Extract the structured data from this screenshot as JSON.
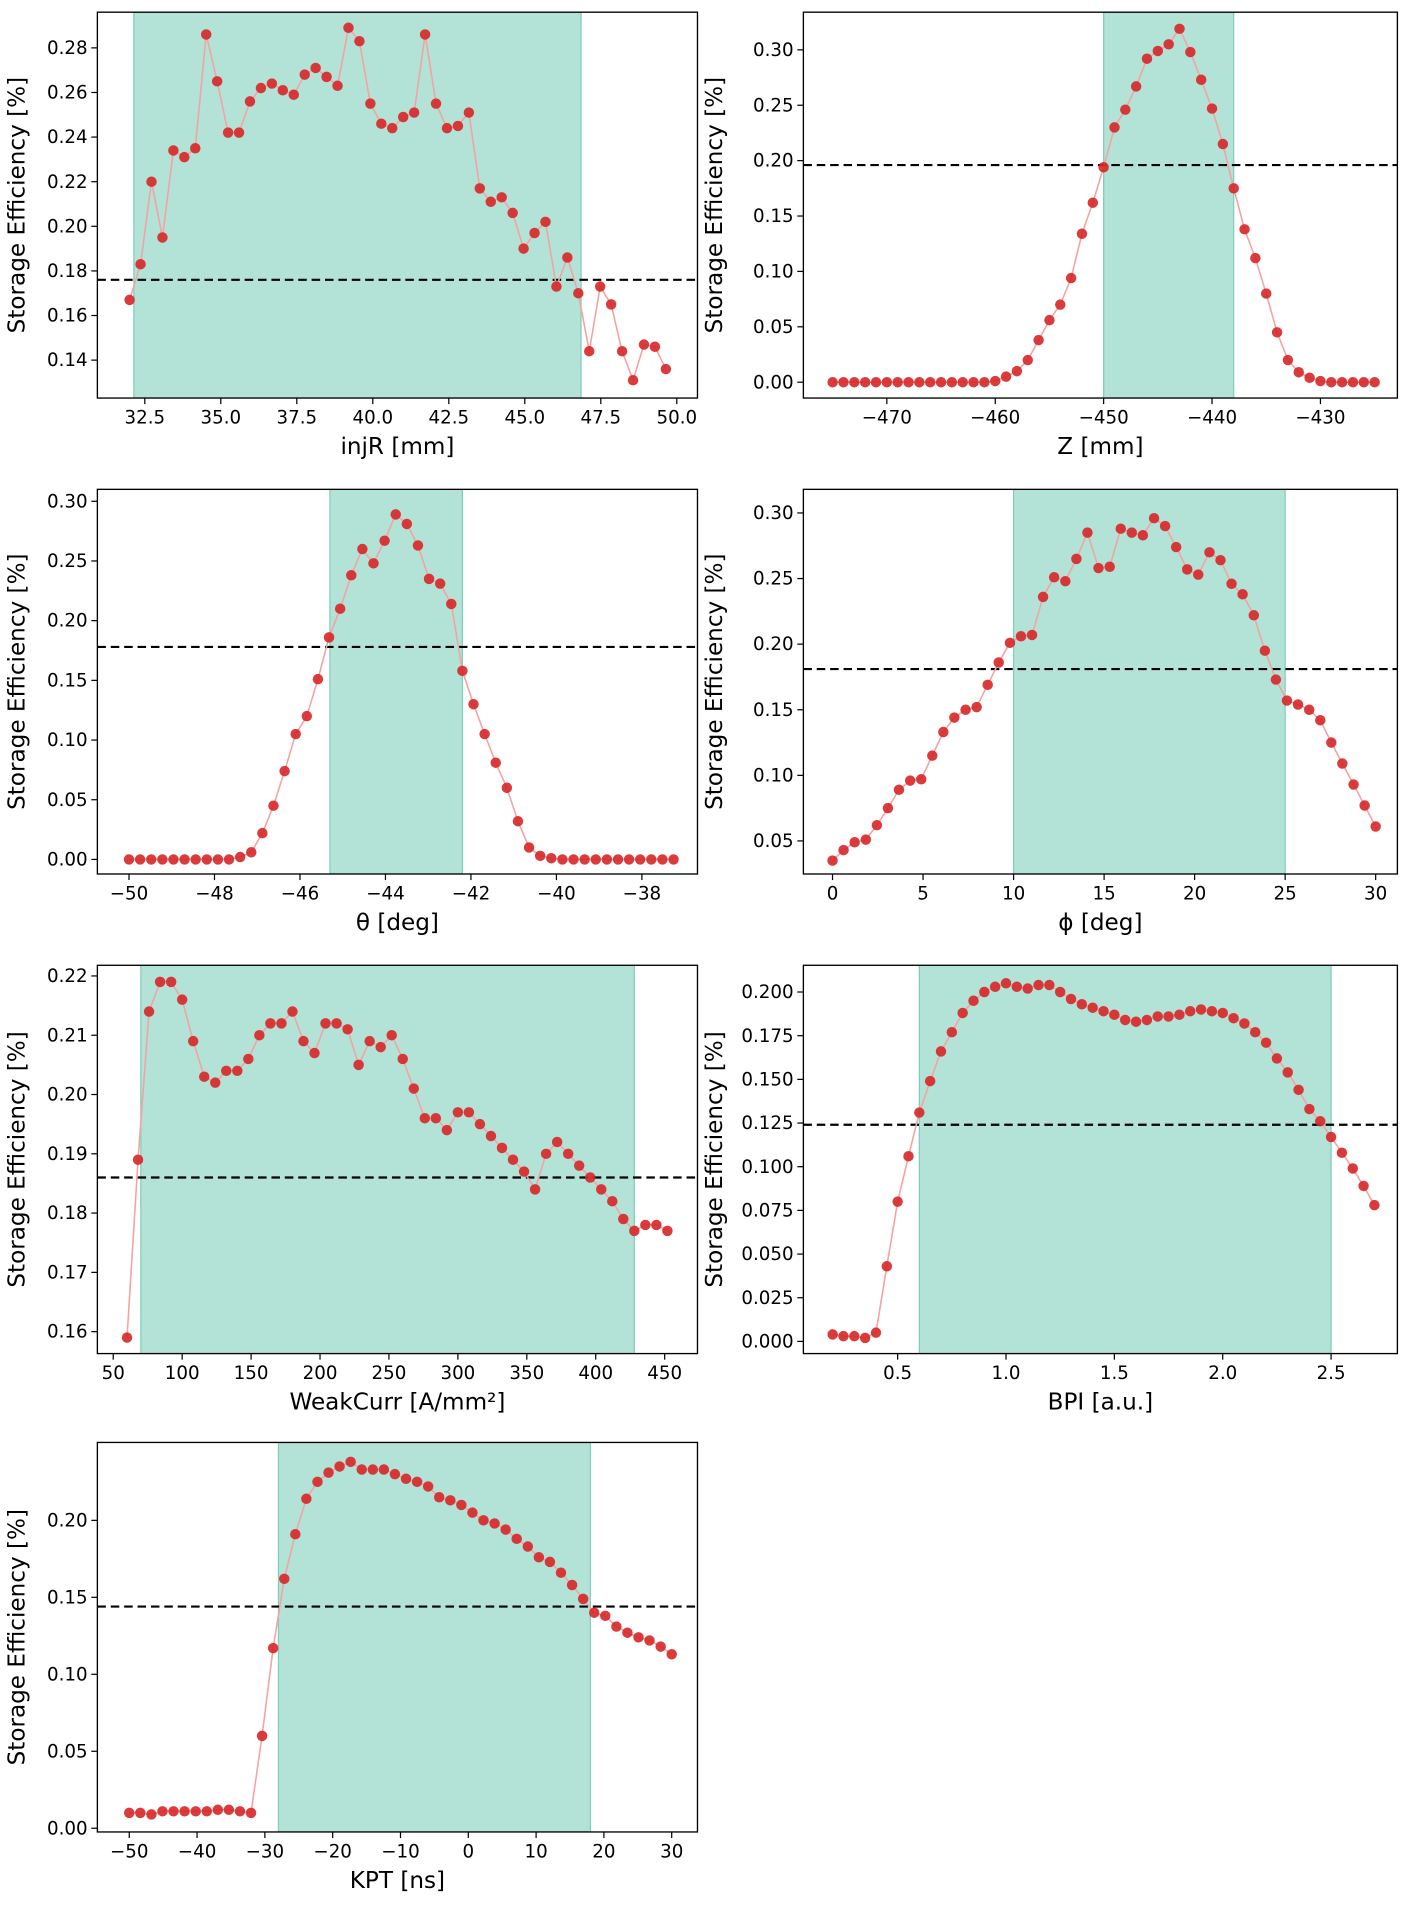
{
  "chart_data": [
    {
      "type": "line",
      "xlabel": "injR [mm]",
      "ylabel": "Storage Efficiency [%]",
      "color": "#d62728",
      "line_color": "#f4a3a3",
      "span_color": "#b3e2d7",
      "hline": 0.176,
      "span": [
        32.14,
        46.85
      ],
      "x": [
        32,
        32.36,
        32.72,
        33.08,
        33.44,
        33.8,
        34.16,
        34.52,
        34.88,
        35.24,
        35.6,
        35.96,
        36.32,
        36.68,
        37.04,
        37.4,
        37.76,
        38.12,
        38.48,
        38.84,
        39.2,
        39.56,
        39.92,
        40.28,
        40.64,
        41,
        41.36,
        41.72,
        42.08,
        42.44,
        42.8,
        43.16,
        43.52,
        43.88,
        44.24,
        44.6,
        44.96,
        45.32,
        45.68,
        46.04,
        46.4,
        46.76,
        47.12,
        47.48,
        47.84,
        48.2,
        48.56,
        48.92,
        49.28,
        49.64
      ],
      "values": [
        0.167,
        0.183,
        0.22,
        0.195,
        0.234,
        0.231,
        0.235,
        0.286,
        0.265,
        0.242,
        0.242,
        0.256,
        0.262,
        0.264,
        0.261,
        0.259,
        0.268,
        0.271,
        0.267,
        0.263,
        0.289,
        0.283,
        0.255,
        0.246,
        0.244,
        0.249,
        0.251,
        0.286,
        0.255,
        0.244,
        0.245,
        0.251,
        0.217,
        0.211,
        0.213,
        0.206,
        0.19,
        0.197,
        0.202,
        0.173,
        0.186,
        0.17,
        0.144,
        0.173,
        0.165,
        0.144,
        0.131,
        0.147,
        0.146,
        0.136
      ],
      "xlim": [
        30.94,
        50.68
      ],
      "ylim": [
        0.123,
        0.296
      ],
      "xticks": [
        32.5,
        {
          "value": 35,
          "label": "35.0"
        },
        37.5,
        {
          "value": 40,
          "label": "40.0"
        },
        42.5,
        {
          "value": 45,
          "label": "45.0"
        },
        47.5,
        {
          "value": 50,
          "label": "50.0"
        }
      ],
      "yticks": [
        0.14,
        0.16,
        0.18,
        {
          "value": 0.2,
          "label": "0.20"
        },
        0.22,
        0.24,
        0.26,
        0.28
      ]
    },
    {
      "type": "line",
      "xlabel": "Z [mm]",
      "ylabel": "Storage Efficiency [%]",
      "color": "#d62728",
      "line_color": "#f4a3a3",
      "span_color": "#b3e2d7",
      "hline": 0.196,
      "span": [
        -450,
        -438
      ],
      "x": [
        -475,
        -474,
        -473,
        -472,
        -471,
        -470,
        -469,
        -468,
        -467,
        -466,
        -465,
        -464,
        -463,
        -462,
        -461,
        -460,
        -459,
        -458,
        -457,
        -456,
        -455,
        -454,
        -453,
        -452,
        -451,
        -450,
        -449,
        -448,
        -447,
        -446,
        -445,
        -444,
        -443,
        -442,
        -441,
        -440,
        -439,
        -438,
        -437,
        -436,
        -435,
        -434,
        -433,
        -432,
        -431,
        -430,
        -429,
        -428,
        -427,
        -426,
        -425
      ],
      "values": [
        0,
        0,
        0,
        0,
        0,
        0,
        0,
        0,
        0,
        0,
        0,
        0,
        0,
        0,
        0,
        0.001,
        0.005,
        0.01,
        0.02,
        0.038,
        0.056,
        0.07,
        0.094,
        0.134,
        0.162,
        0.194,
        0.23,
        0.246,
        0.267,
        0.292,
        0.299,
        0.305,
        0.319,
        0.298,
        0.273,
        0.247,
        0.215,
        0.175,
        0.138,
        0.112,
        0.08,
        0.045,
        0.02,
        0.009,
        0.004,
        0.001,
        0,
        0,
        0,
        0,
        0
      ],
      "xlim": [
        -477.7,
        -422.9
      ],
      "ylim": [
        -0.0143,
        0.334
      ],
      "xticks": [
        {
          "value": -470,
          "label": "−470"
        },
        {
          "value": -460,
          "label": "−460"
        },
        {
          "value": -450,
          "label": "−450"
        },
        {
          "value": -440,
          "label": "−440"
        },
        {
          "value": -430,
          "label": "−430"
        }
      ],
      "yticks": [
        {
          "value": 0,
          "label": "0.00"
        },
        0.05,
        {
          "value": 0.1,
          "label": "0.10"
        },
        0.15,
        {
          "value": 0.2,
          "label": "0.20"
        },
        0.25,
        {
          "value": 0.3,
          "label": "0.30"
        }
      ]
    },
    {
      "type": "line",
      "xlabel": "θ [deg]",
      "ylabel": "Storage Efficiency [%]",
      "color": "#d62728",
      "line_color": "#f4a3a3",
      "span_color": "#b3e2d7",
      "hline": 0.178,
      "span": [
        -45.3,
        -42.2
      ],
      "x": [
        -50,
        -49.74,
        -49.48,
        -49.22,
        -48.96,
        -48.7,
        -48.44,
        -48.18,
        -47.92,
        -47.66,
        -47.4,
        -47.14,
        -46.88,
        -46.62,
        -46.36,
        -46.1,
        -45.84,
        -45.58,
        -45.32,
        -45.06,
        -44.8,
        -44.54,
        -44.28,
        -44.02,
        -43.76,
        -43.5,
        -43.24,
        -42.98,
        -42.72,
        -42.46,
        -42.2,
        -41.94,
        -41.68,
        -41.42,
        -41.16,
        -40.9,
        -40.64,
        -40.38,
        -40.12,
        -39.86,
        -39.6,
        -39.34,
        -39.08,
        -38.82,
        -38.56,
        -38.3,
        -38.04,
        -37.78,
        -37.52,
        -37.26
      ],
      "values": [
        0,
        0,
        0,
        0,
        0,
        0,
        0,
        0,
        0,
        0,
        0.002,
        0.006,
        0.022,
        0.045,
        0.074,
        0.105,
        0.12,
        0.151,
        0.186,
        0.21,
        0.238,
        0.26,
        0.248,
        0.267,
        0.289,
        0.281,
        0.263,
        0.235,
        0.231,
        0.214,
        0.158,
        0.13,
        0.105,
        0.081,
        0.06,
        0.032,
        0.01,
        0.003,
        0.001,
        0,
        0,
        0,
        0,
        0,
        0,
        0,
        0,
        0,
        0,
        0
      ],
      "xlim": [
        -50.74,
        -36.7
      ],
      "ylim": [
        -0.0122,
        0.31
      ],
      "xticks": [
        {
          "value": -50,
          "label": "−50"
        },
        {
          "value": -48,
          "label": "−48"
        },
        {
          "value": -46,
          "label": "−46"
        },
        {
          "value": -44,
          "label": "−44"
        },
        {
          "value": -42,
          "label": "−42"
        },
        {
          "value": -40,
          "label": "−40"
        },
        {
          "value": -38,
          "label": "−38"
        }
      ],
      "yticks": [
        {
          "value": 0,
          "label": "0.00"
        },
        0.05,
        {
          "value": 0.1,
          "label": "0.10"
        },
        0.15,
        {
          "value": 0.2,
          "label": "0.20"
        },
        0.25,
        {
          "value": 0.3,
          "label": "0.30"
        }
      ]
    },
    {
      "type": "line",
      "xlabel": "ϕ [deg]",
      "ylabel": "Storage Efficiency [%]",
      "color": "#d62728",
      "line_color": "#f4a3a3",
      "span_color": "#b3e2d7",
      "hline": 0.181,
      "span": [
        10,
        25
      ],
      "x": [
        0,
        0.61,
        1.22,
        1.84,
        2.45,
        3.06,
        3.67,
        4.29,
        4.9,
        5.51,
        6.12,
        6.73,
        7.35,
        7.96,
        8.57,
        9.18,
        9.8,
        10.41,
        11.02,
        11.63,
        12.24,
        12.86,
        13.47,
        14.08,
        14.69,
        15.31,
        15.92,
        16.53,
        17.14,
        17.76,
        18.37,
        18.98,
        19.59,
        20.2,
        20.82,
        21.43,
        22.04,
        22.65,
        23.27,
        23.88,
        24.49,
        25.1,
        25.71,
        26.33,
        26.94,
        27.55,
        28.16,
        28.78,
        29.39,
        30
      ],
      "values": [
        0.035,
        0.043,
        0.049,
        0.051,
        0.062,
        0.075,
        0.089,
        0.096,
        0.097,
        0.115,
        0.133,
        0.144,
        0.15,
        0.152,
        0.169,
        0.186,
        0.201,
        0.206,
        0.207,
        0.236,
        0.251,
        0.248,
        0.265,
        0.285,
        0.258,
        0.259,
        0.288,
        0.285,
        0.283,
        0.296,
        0.29,
        0.274,
        0.257,
        0.253,
        0.27,
        0.264,
        0.246,
        0.238,
        0.222,
        0.195,
        0.173,
        0.157,
        0.154,
        0.15,
        0.142,
        0.125,
        0.109,
        0.093,
        0.077,
        0.061
      ],
      "xlim": [
        -1.61,
        31.2
      ],
      "ylim": [
        0.0248,
        0.318
      ],
      "xticks": [
        0,
        5,
        10,
        15,
        20,
        25,
        30
      ],
      "yticks": [
        0.05,
        {
          "value": 0.1,
          "label": "0.10"
        },
        0.15,
        {
          "value": 0.2,
          "label": "0.20"
        },
        0.25,
        {
          "value": 0.3,
          "label": "0.30"
        }
      ]
    },
    {
      "type": "line",
      "xlabel": "WeakCurr [A/mm²]",
      "ylabel": "Storage Efficiency [%]",
      "color": "#d62728",
      "line_color": "#f4a3a3",
      "span_color": "#b3e2d7",
      "hline": 0.186,
      "span": [
        70,
        428
      ],
      "x": [
        60,
        68,
        76,
        84,
        92,
        100,
        108,
        116,
        124,
        132,
        140,
        148,
        156,
        164,
        172,
        180,
        188,
        196,
        204,
        212,
        220,
        228,
        236,
        244,
        252,
        260,
        268,
        276,
        284,
        292,
        300,
        308,
        316,
        324,
        332,
        340,
        348,
        356,
        364,
        372,
        380,
        388,
        396,
        404,
        412,
        420,
        428,
        436,
        444,
        452
      ],
      "values": [
        0.159,
        0.189,
        0.214,
        0.219,
        0.219,
        0.216,
        0.209,
        0.203,
        0.202,
        0.204,
        0.204,
        0.206,
        0.21,
        0.212,
        0.212,
        0.214,
        0.209,
        0.207,
        0.212,
        0.212,
        0.211,
        0.205,
        0.209,
        0.208,
        0.21,
        0.206,
        0.201,
        0.196,
        0.196,
        0.194,
        0.197,
        0.197,
        0.195,
        0.193,
        0.191,
        0.189,
        0.187,
        0.184,
        0.19,
        0.192,
        0.19,
        0.188,
        0.186,
        0.184,
        0.182,
        0.179,
        0.177,
        0.178,
        0.178,
        0.177
      ],
      "xlim": [
        38.5,
        473.8
      ],
      "ylim": [
        0.1563,
        0.2218
      ],
      "xticks": [
        50,
        100,
        150,
        200,
        250,
        300,
        350,
        400,
        450
      ],
      "yticks": [
        0.16,
        0.17,
        0.18,
        0.19,
        {
          "value": 0.2,
          "label": "0.20"
        },
        0.21,
        0.22
      ]
    },
    {
      "type": "line",
      "xlabel": "BPI [a.u.]",
      "ylabel": "Storage Efficiency [%]",
      "color": "#d62728",
      "line_color": "#f4a3a3",
      "span_color": "#b3e2d7",
      "hline": 0.124,
      "span": [
        0.6,
        2.5
      ],
      "x": [
        0.2,
        0.25,
        0.3,
        0.35,
        0.4,
        0.45,
        0.5,
        0.55,
        0.6,
        0.65,
        0.7,
        0.75,
        0.8,
        0.85,
        0.9,
        0.95,
        1.0,
        1.05,
        1.1,
        1.15,
        1.2,
        1.25,
        1.3,
        1.35,
        1.4,
        1.45,
        1.5,
        1.55,
        1.6,
        1.65,
        1.7,
        1.75,
        1.8,
        1.85,
        1.9,
        1.95,
        2.0,
        2.05,
        2.1,
        2.15,
        2.2,
        2.25,
        2.3,
        2.35,
        2.4,
        2.45,
        2.5,
        2.55,
        2.6,
        2.65,
        2.7
      ],
      "values": [
        0.004,
        0.003,
        0.003,
        0.002,
        0.005,
        0.043,
        0.08,
        0.106,
        0.131,
        0.149,
        0.166,
        0.177,
        0.188,
        0.195,
        0.2,
        0.203,
        0.205,
        0.203,
        0.202,
        0.204,
        0.204,
        0.2,
        0.196,
        0.193,
        0.191,
        0.189,
        0.187,
        0.184,
        0.183,
        0.184,
        0.186,
        0.186,
        0.187,
        0.189,
        0.19,
        0.189,
        0.188,
        0.185,
        0.182,
        0.177,
        0.171,
        0.162,
        0.154,
        0.144,
        0.133,
        0.126,
        0.117,
        0.108,
        0.099,
        0.089,
        0.078
      ],
      "xlim": [
        0.065,
        2.806
      ],
      "ylim": [
        -0.00697,
        0.2153
      ],
      "xticks": [
        0.5,
        {
          "value": 1,
          "label": "1.0"
        },
        1.5,
        {
          "value": 2,
          "label": "2.0"
        },
        2.5
      ],
      "yticks": [
        {
          "value": 0,
          "label": "0.000"
        },
        0.025,
        {
          "value": 0.05,
          "label": "0.050"
        },
        0.075,
        {
          "value": 0.1,
          "label": "0.100"
        },
        0.125,
        {
          "value": 0.15,
          "label": "0.150"
        },
        0.175,
        {
          "value": 0.2,
          "label": "0.200"
        }
      ]
    },
    {
      "type": "line",
      "xlabel": "KPT [ns]",
      "ylabel": "Storage Efficiency [%]",
      "color": "#d62728",
      "line_color": "#f4a3a3",
      "span_color": "#b3e2d7",
      "hline": 0.144,
      "span": [
        -28,
        18
      ],
      "x": [
        -50,
        -48.37,
        -46.73,
        -45.1,
        -43.47,
        -41.84,
        -40.2,
        -38.57,
        -36.94,
        -35.31,
        -33.67,
        -32.04,
        -30.41,
        -28.78,
        -27.14,
        -25.51,
        -23.88,
        -22.24,
        -20.61,
        -18.98,
        -17.35,
        -15.71,
        -14.08,
        -12.45,
        -10.82,
        -9.18,
        -7.55,
        -5.92,
        -4.29,
        -2.65,
        -1.02,
        0.61,
        2.24,
        3.88,
        5.51,
        7.14,
        8.78,
        10.41,
        12.04,
        13.67,
        15.31,
        16.94,
        18.57,
        20.2,
        21.84,
        23.47,
        25.1,
        26.73,
        28.37,
        30
      ],
      "values": [
        0.01,
        0.01,
        0.009,
        0.011,
        0.011,
        0.011,
        0.011,
        0.011,
        0.012,
        0.012,
        0.011,
        0.01,
        0.06,
        0.117,
        0.162,
        0.191,
        0.214,
        0.225,
        0.231,
        0.235,
        0.238,
        0.233,
        0.233,
        0.233,
        0.23,
        0.227,
        0.225,
        0.222,
        0.215,
        0.213,
        0.21,
        0.205,
        0.2,
        0.198,
        0.194,
        0.188,
        0.183,
        0.176,
        0.173,
        0.166,
        0.158,
        0.149,
        0.14,
        0.138,
        0.131,
        0.127,
        0.124,
        0.122,
        0.118,
        0.113
      ],
      "xlim": [
        -54.7,
        33.8
      ],
      "ylim": [
        -0.0024,
        0.2506
      ],
      "xticks": [
        {
          "value": -50,
          "label": "−50"
        },
        {
          "value": -40,
          "label": "−40"
        },
        {
          "value": -30,
          "label": "−30"
        },
        {
          "value": -20,
          "label": "−20"
        },
        {
          "value": -10,
          "label": "−10"
        },
        0,
        10,
        20,
        30
      ],
      "yticks": [
        {
          "value": 0,
          "label": "0.00"
        },
        0.05,
        {
          "value": 0.1,
          "label": "0.10"
        },
        0.15,
        {
          "value": 0.2,
          "label": "0.20"
        }
      ]
    }
  ]
}
